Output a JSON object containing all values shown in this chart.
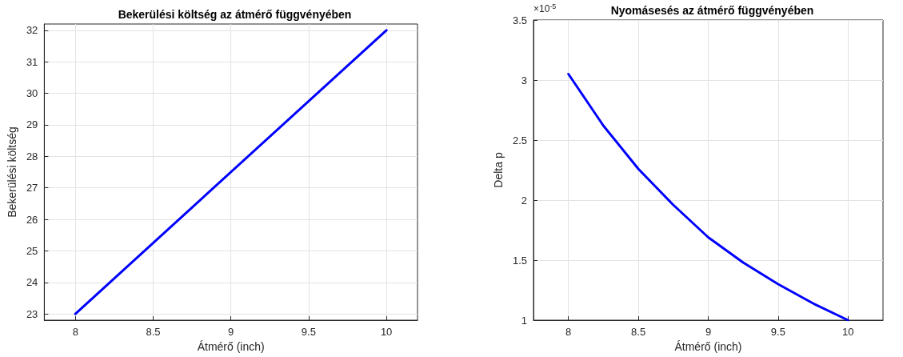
{
  "chart_data": [
    {
      "type": "line",
      "title": "Bekerülési költség az átmérő függvényében",
      "xlabel": "Átmérő (inch)",
      "ylabel": "Bekerülési költség",
      "x": [
        8,
        10
      ],
      "series": [
        {
          "color": "#0000ff",
          "values": [
            23,
            32
          ]
        }
      ],
      "xlim": [
        7.8,
        10.2
      ],
      "xticks": [
        8,
        8.5,
        9,
        9.5,
        10
      ],
      "ylim": [
        22.8,
        32.2
      ],
      "yticks": [
        23,
        24,
        25,
        26,
        27,
        28,
        29,
        30,
        31,
        32
      ],
      "grid": true,
      "marker": "none",
      "line_style": "solid"
    },
    {
      "type": "line",
      "title": "Nyomásesés az átmérő függvényében",
      "xlabel": "Átmérő (inch)",
      "ylabel": "Delta p",
      "annotations": [
        "×10$^{-5}$"
      ],
      "x": [
        8,
        8.25,
        8.5,
        8.75,
        9,
        9.25,
        9.5,
        9.75,
        10
      ],
      "series": [
        {
          "color": "#0000ff",
          "values": [
            3.05,
            2.62,
            2.26,
            1.96,
            1.69,
            1.48,
            1.3,
            1.14,
            1.0
          ]
        }
      ],
      "xlim": [
        7.75,
        10.25
      ],
      "xticks": [
        8,
        8.5,
        9,
        9.5,
        10
      ],
      "ylim": [
        1,
        3.5
      ],
      "yticks": [
        1,
        1.5,
        2,
        2.5,
        3,
        3.5
      ],
      "grid": true,
      "marker": "none",
      "line_style": "solid"
    }
  ]
}
